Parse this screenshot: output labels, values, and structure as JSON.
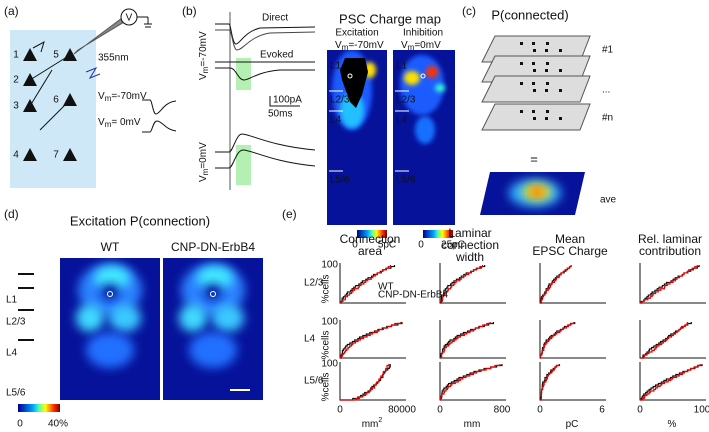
{
  "panel_a": {
    "label": "(a)",
    "cells": [
      "1",
      "2",
      "3",
      "4",
      "5",
      "6",
      "7"
    ],
    "amplifier": "V",
    "wavelength": "355nm",
    "holds": [
      {
        "v": "V",
        "sub": "m",
        "rest": "=-70mV"
      },
      {
        "v": "V",
        "sub": "m",
        "rest": "= 0mV"
      }
    ]
  },
  "panel_b": {
    "label": "(b)",
    "direct": "Direct",
    "evoked": "Evoked",
    "scale_current": "100pA",
    "scale_time": "50ms",
    "holds": [
      {
        "v": "V",
        "sub": "m",
        "rest": "=-70mV"
      },
      {
        "v": "V",
        "sub": "m",
        "rest": "=0mV"
      }
    ],
    "map_title": "PSC Charge map",
    "maps": [
      {
        "title": "Excitation",
        "hold": {
          "v": "V",
          "sub": "m",
          "rest": "=-70mV"
        },
        "layers": [
          "L1",
          "L2/3",
          "L4",
          "L5/6"
        ],
        "scale_min": "0",
        "scale_max": "5pC"
      },
      {
        "title": "Inhibition",
        "hold": {
          "v": "V",
          "sub": "m",
          "rest": "=0mV"
        },
        "layers": [
          "L1",
          "L2/3",
          "L4",
          "L5/6"
        ],
        "scale_min": "0",
        "scale_max": "25pC"
      }
    ]
  },
  "panel_c": {
    "label": "(c)",
    "title": "P(connected)",
    "slices": [
      "#1",
      "...",
      "#n"
    ],
    "equals": "=",
    "average": "ave"
  },
  "panel_d": {
    "label": "(d)",
    "title": "Excitation P(connection)",
    "groups": [
      "WT",
      "CNP-DN-ErbB4"
    ],
    "layers": [
      "L1",
      "L2/3",
      "L4",
      "L5/6"
    ],
    "scale_min": "0",
    "scale_max": "40%"
  },
  "panel_e": {
    "label": "(e)",
    "columns": [
      {
        "title": [
          "Connection",
          "area"
        ],
        "x_min": "0",
        "x_max": "80000",
        "unit": "mm",
        "unit_sup": "2"
      },
      {
        "title": [
          "Laminar",
          "connection",
          "width"
        ],
        "x_min": "0",
        "x_max": "800",
        "unit": "mm"
      },
      {
        "title": [
          "Mean",
          "EPSC Charge"
        ],
        "x_min": "0",
        "x_max": "6",
        "unit": "pC"
      },
      {
        "title": [
          "Rel. laminar",
          "contribution"
        ],
        "x_min": "0",
        "x_max": "100",
        "unit": "%"
      }
    ],
    "rows": [
      "L2/3",
      "L4",
      "L5/6"
    ],
    "y_label": "%cells",
    "y_max": "100",
    "legend": [
      "WT",
      "CNP-DN-ErbB4"
    ]
  }
}
